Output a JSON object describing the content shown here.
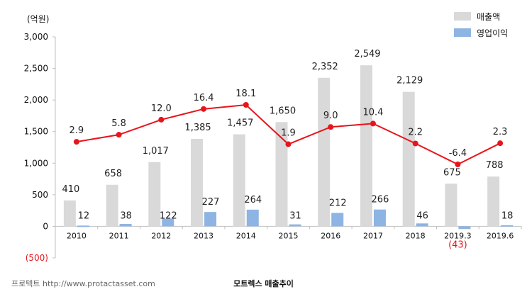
{
  "chart_data": {
    "type": "bar",
    "unit_label": "(억원)",
    "categories": [
      "2010",
      "2011",
      "2012",
      "2013",
      "2014",
      "2015",
      "2016",
      "2017",
      "2018",
      "2019.3",
      "2019.6"
    ],
    "series": [
      {
        "name": "매출액",
        "values": [
          410,
          658,
          1017,
          1385,
          1457,
          1650,
          2352,
          2549,
          2129,
          675,
          788
        ],
        "labels": [
          "410",
          "658",
          "1,017",
          "1,385",
          "1,457",
          "1,650",
          "2,352",
          "2,549",
          "2,129",
          "675",
          "788"
        ],
        "color": "#d9d9d9"
      },
      {
        "name": "영업이익",
        "values": [
          12,
          38,
          122,
          227,
          264,
          31,
          212,
          266,
          46,
          -43,
          18
        ],
        "labels": [
          "12",
          "38",
          "122",
          "227",
          "264",
          "31",
          "212",
          "266",
          "46",
          "(43)",
          "18"
        ],
        "color": "#8db4e2"
      }
    ],
    "margin_line": {
      "values": [
        2.9,
        5.8,
        12.0,
        16.4,
        18.1,
        1.9,
        9.0,
        10.4,
        2.2,
        -6.4,
        2.3
      ],
      "labels": [
        "2.9",
        "5.8",
        "12.0",
        "16.4",
        "18.1",
        "1.9",
        "9.0",
        "10.4",
        "2.2",
        "-6.4",
        "2.3"
      ],
      "color": "#e8141c"
    },
    "ylim": [
      -500,
      3000
    ],
    "yticks": [
      3000,
      2500,
      2000,
      1500,
      1000,
      500,
      0,
      -500
    ],
    "ytick_labels": [
      "3,000",
      "2,500",
      "2,000",
      "1,500",
      "1,000",
      "500",
      "0",
      "(500)"
    ],
    "negative_color": "#e8141c",
    "legend_position": "top-right"
  },
  "source": "프로텍트 http://www.protactasset.com",
  "caption": "모트렉스 매출추이"
}
